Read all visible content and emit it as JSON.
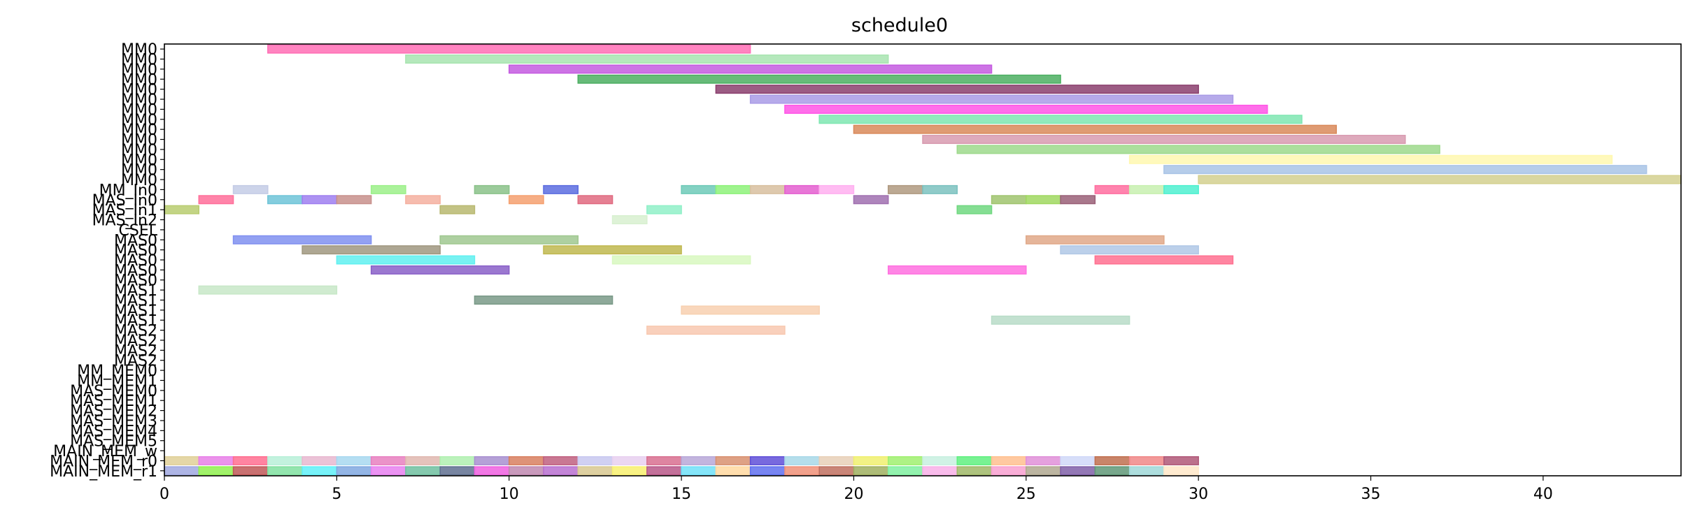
{
  "chart_data": {
    "type": "gantt",
    "title": "schedule0",
    "xlim": [
      0,
      44
    ],
    "x_ticks": [
      0,
      5,
      10,
      15,
      20,
      25,
      30,
      35,
      40
    ],
    "grid": false,
    "rows": [
      "MM0",
      "MM0",
      "MM0",
      "MM0",
      "MM0",
      "MM0",
      "MM0",
      "MM0",
      "MM0",
      "MM0",
      "MM0",
      "MM0",
      "MM0",
      "MM0",
      "MM_In0",
      "MAS_In0",
      "MAS_In1",
      "MAS_In2",
      "CSEL",
      "MAS0",
      "MAS0",
      "MAS0",
      "MAS0",
      "MAS0",
      "MAS1",
      "MAS1",
      "MAS1",
      "MAS1",
      "MAS2",
      "MAS2",
      "MAS2",
      "MAS2",
      "MM_MEM0",
      "MM_MEM1",
      "MAS_MEM0",
      "MAS_MEM1",
      "MAS_MEM2",
      "MAS_MEM3",
      "MAS_MEM4",
      "MAS_MEM5",
      "MAIN_MEM_w",
      "MAIN_MEM_r0",
      "MAIN_MEM_r1"
    ],
    "bars": [
      {
        "row": 0,
        "start": 3,
        "end": 17,
        "color": "#ff6fb5"
      },
      {
        "row": 1,
        "start": 7,
        "end": 21,
        "color": "#a8e4b0"
      },
      {
        "row": 2,
        "start": 10,
        "end": 24,
        "color": "#c45ae0"
      },
      {
        "row": 3,
        "start": 12,
        "end": 26,
        "color": "#4caf62"
      },
      {
        "row": 4,
        "start": 16,
        "end": 30,
        "color": "#8b3f6e"
      },
      {
        "row": 5,
        "start": 17,
        "end": 31,
        "color": "#a99be6"
      },
      {
        "row": 6,
        "start": 18,
        "end": 32,
        "color": "#ff55e6"
      },
      {
        "row": 7,
        "start": 19,
        "end": 33,
        "color": "#7fe6b2"
      },
      {
        "row": 8,
        "start": 20,
        "end": 34,
        "color": "#d9895a"
      },
      {
        "row": 9,
        "start": 22,
        "end": 36,
        "color": "#d89bb0"
      },
      {
        "row": 10,
        "start": 23,
        "end": 37,
        "color": "#9ed98c"
      },
      {
        "row": 11,
        "start": 28,
        "end": 42,
        "color": "#fff8b0"
      },
      {
        "row": 12,
        "start": 29,
        "end": 43,
        "color": "#a9c4e6"
      },
      {
        "row": 13,
        "start": 30,
        "end": 44,
        "color": "#d4d08f"
      },
      {
        "row": 14,
        "start": 2,
        "end": 3,
        "color": "#c4cce6"
      },
      {
        "row": 14,
        "start": 6,
        "end": 7,
        "color": "#9cf08a"
      },
      {
        "row": 14,
        "start": 9,
        "end": 10,
        "color": "#8bc28a"
      },
      {
        "row": 14,
        "start": 11,
        "end": 12,
        "color": "#5c6de0"
      },
      {
        "row": 14,
        "start": 15,
        "end": 16,
        "color": "#6fcab8"
      },
      {
        "row": 14,
        "start": 16,
        "end": 17,
        "color": "#8ef27a"
      },
      {
        "row": 14,
        "start": 17,
        "end": 18,
        "color": "#d8c0a0"
      },
      {
        "row": 14,
        "start": 18,
        "end": 19,
        "color": "#e45fd0"
      },
      {
        "row": 14,
        "start": 19,
        "end": 20,
        "color": "#ffb0f0"
      },
      {
        "row": 14,
        "start": 21,
        "end": 22,
        "color": "#b09a80"
      },
      {
        "row": 14,
        "start": 22,
        "end": 23,
        "color": "#7cc2c0"
      },
      {
        "row": 14,
        "start": 27,
        "end": 28,
        "color": "#ff6fa0"
      },
      {
        "row": 14,
        "start": 28,
        "end": 29,
        "color": "#c8f0b0"
      },
      {
        "row": 14,
        "start": 29,
        "end": 30,
        "color": "#4ff0d0"
      },
      {
        "row": 15,
        "start": 1,
        "end": 2,
        "color": "#ff6f9a"
      },
      {
        "row": 15,
        "start": 3,
        "end": 4,
        "color": "#6fc4d8"
      },
      {
        "row": 15,
        "start": 4,
        "end": 5,
        "color": "#9f7ff0"
      },
      {
        "row": 15,
        "start": 5,
        "end": 6,
        "color": "#c8908c"
      },
      {
        "row": 15,
        "start": 7,
        "end": 8,
        "color": "#f5b0a0"
      },
      {
        "row": 15,
        "start": 10,
        "end": 11,
        "color": "#f5a070"
      },
      {
        "row": 15,
        "start": 12,
        "end": 13,
        "color": "#e06a80"
      },
      {
        "row": 15,
        "start": 20,
        "end": 21,
        "color": "#a070b0"
      },
      {
        "row": 15,
        "start": 24,
        "end": 25,
        "color": "#a0c46f"
      },
      {
        "row": 15,
        "start": 25,
        "end": 26,
        "color": "#a0d860"
      },
      {
        "row": 15,
        "start": 26,
        "end": 27,
        "color": "#9a6078"
      },
      {
        "row": 16,
        "start": 0,
        "end": 1,
        "color": "#b8cc70"
      },
      {
        "row": 16,
        "start": 8,
        "end": 9,
        "color": "#b8b870"
      },
      {
        "row": 16,
        "start": 14,
        "end": 15,
        "color": "#90f0c8"
      },
      {
        "row": 16,
        "start": 23,
        "end": 24,
        "color": "#70d880"
      },
      {
        "row": 17,
        "start": 13,
        "end": 14,
        "color": "#d8f0d0"
      },
      {
        "row": 19,
        "start": 2,
        "end": 6,
        "color": "#8090f0"
      },
      {
        "row": 19,
        "start": 8,
        "end": 12,
        "color": "#a0c890"
      },
      {
        "row": 19,
        "start": 25,
        "end": 29,
        "color": "#e0a888"
      },
      {
        "row": 20,
        "start": 4,
        "end": 8,
        "color": "#a09880"
      },
      {
        "row": 20,
        "start": 11,
        "end": 15,
        "color": "#c0b850"
      },
      {
        "row": 20,
        "start": 26,
        "end": 30,
        "color": "#b0c8e6"
      },
      {
        "row": 21,
        "start": 5,
        "end": 9,
        "color": "#60f0f0"
      },
      {
        "row": 21,
        "start": 13,
        "end": 17,
        "color": "#d8f8c0"
      },
      {
        "row": 21,
        "start": 27,
        "end": 31,
        "color": "#ff7090"
      },
      {
        "row": 22,
        "start": 6,
        "end": 10,
        "color": "#8a60c8"
      },
      {
        "row": 22,
        "start": 21,
        "end": 25,
        "color": "#ff70e0"
      },
      {
        "row": 24,
        "start": 1,
        "end": 5,
        "color": "#c8e8c8"
      },
      {
        "row": 25,
        "start": 9,
        "end": 13,
        "color": "#7a9a88"
      },
      {
        "row": 26,
        "start": 15,
        "end": 19,
        "color": "#f8d0b0"
      },
      {
        "row": 27,
        "start": 24,
        "end": 28,
        "color": "#b8dcc8"
      },
      {
        "row": 28,
        "start": 14,
        "end": 18,
        "color": "#f8c8b0"
      },
      {
        "row": 41,
        "start": 0,
        "end": 1,
        "color": "#e0d098"
      },
      {
        "row": 41,
        "start": 1,
        "end": 2,
        "color": "#e880e8"
      },
      {
        "row": 41,
        "start": 2,
        "end": 3,
        "color": "#ff6f90"
      },
      {
        "row": 41,
        "start": 3,
        "end": 4,
        "color": "#b8f0d8"
      },
      {
        "row": 41,
        "start": 4,
        "end": 5,
        "color": "#e8b8d0"
      },
      {
        "row": 41,
        "start": 5,
        "end": 6,
        "color": "#a8d8f0"
      },
      {
        "row": 41,
        "start": 6,
        "end": 7,
        "color": "#e880c0"
      },
      {
        "row": 41,
        "start": 7,
        "end": 8,
        "color": "#e0b8b0"
      },
      {
        "row": 41,
        "start": 8,
        "end": 9,
        "color": "#b0f0b0"
      },
      {
        "row": 41,
        "start": 9,
        "end": 10,
        "color": "#a890d0"
      },
      {
        "row": 41,
        "start": 10,
        "end": 11,
        "color": "#d88060"
      },
      {
        "row": 41,
        "start": 11,
        "end": 12,
        "color": "#c06080"
      },
      {
        "row": 41,
        "start": 12,
        "end": 13,
        "color": "#c8c8f0"
      },
      {
        "row": 41,
        "start": 13,
        "end": 14,
        "color": "#e8d0f0"
      },
      {
        "row": 41,
        "start": 14,
        "end": 15,
        "color": "#d87090"
      },
      {
        "row": 41,
        "start": 15,
        "end": 16,
        "color": "#b8a8d8"
      },
      {
        "row": 41,
        "start": 16,
        "end": 17,
        "color": "#d89070"
      },
      {
        "row": 41,
        "start": 17,
        "end": 18,
        "color": "#6050d8"
      },
      {
        "row": 41,
        "start": 18,
        "end": 19,
        "color": "#a8d8e8"
      },
      {
        "row": 41,
        "start": 19,
        "end": 20,
        "color": "#e8d0b8"
      },
      {
        "row": 41,
        "start": 20,
        "end": 21,
        "color": "#f0f070"
      },
      {
        "row": 41,
        "start": 21,
        "end": 22,
        "color": "#a0f070"
      },
      {
        "row": 41,
        "start": 22,
        "end": 23,
        "color": "#c8f0e0"
      },
      {
        "row": 41,
        "start": 23,
        "end": 24,
        "color": "#60f080"
      },
      {
        "row": 41,
        "start": 24,
        "end": 25,
        "color": "#ffc090"
      },
      {
        "row": 41,
        "start": 25,
        "end": 26,
        "color": "#e090d8"
      },
      {
        "row": 41,
        "start": 26,
        "end": 27,
        "color": "#d0d8f8"
      },
      {
        "row": 41,
        "start": 27,
        "end": 28,
        "color": "#c07050"
      },
      {
        "row": 41,
        "start": 28,
        "end": 29,
        "color": "#f08888"
      },
      {
        "row": 41,
        "start": 29,
        "end": 30,
        "color": "#b05878"
      },
      {
        "row": 42,
        "start": 0,
        "end": 1,
        "color": "#a0a8e0"
      },
      {
        "row": 42,
        "start": 1,
        "end": 2,
        "color": "#90f050"
      },
      {
        "row": 42,
        "start": 2,
        "end": 3,
        "color": "#c05858"
      },
      {
        "row": 42,
        "start": 3,
        "end": 4,
        "color": "#80e0a0"
      },
      {
        "row": 42,
        "start": 4,
        "end": 5,
        "color": "#60f0f8"
      },
      {
        "row": 42,
        "start": 5,
        "end": 6,
        "color": "#80a8e0"
      },
      {
        "row": 42,
        "start": 6,
        "end": 7,
        "color": "#e880f0"
      },
      {
        "row": 42,
        "start": 7,
        "end": 8,
        "color": "#70c0a0"
      },
      {
        "row": 42,
        "start": 8,
        "end": 9,
        "color": "#607090"
      },
      {
        "row": 42,
        "start": 9,
        "end": 10,
        "color": "#f060e0"
      },
      {
        "row": 42,
        "start": 10,
        "end": 11,
        "color": "#c088b0"
      },
      {
        "row": 42,
        "start": 11,
        "end": 12,
        "color": "#b870d0"
      },
      {
        "row": 42,
        "start": 12,
        "end": 13,
        "color": "#d8c890"
      },
      {
        "row": 42,
        "start": 13,
        "end": 14,
        "color": "#f8f070"
      },
      {
        "row": 42,
        "start": 14,
        "end": 15,
        "color": "#b85888"
      },
      {
        "row": 42,
        "start": 15,
        "end": 16,
        "color": "#70e0f8"
      },
      {
        "row": 42,
        "start": 16,
        "end": 17,
        "color": "#ffd8a0"
      },
      {
        "row": 42,
        "start": 17,
        "end": 18,
        "color": "#6070f0"
      },
      {
        "row": 42,
        "start": 18,
        "end": 19,
        "color": "#f09078"
      },
      {
        "row": 42,
        "start": 19,
        "end": 20,
        "color": "#c07060"
      },
      {
        "row": 42,
        "start": 20,
        "end": 21,
        "color": "#a0b060"
      },
      {
        "row": 42,
        "start": 21,
        "end": 22,
        "color": "#80f0a0"
      },
      {
        "row": 42,
        "start": 22,
        "end": 23,
        "color": "#f8b0e8"
      },
      {
        "row": 42,
        "start": 23,
        "end": 24,
        "color": "#a0b868"
      },
      {
        "row": 42,
        "start": 24,
        "end": 25,
        "color": "#f8a0d0"
      },
      {
        "row": 42,
        "start": 25,
        "end": 26,
        "color": "#b0a890"
      },
      {
        "row": 42,
        "start": 26,
        "end": 27,
        "color": "#8060a8"
      },
      {
        "row": 42,
        "start": 27,
        "end": 28,
        "color": "#609878"
      },
      {
        "row": 42,
        "start": 28,
        "end": 29,
        "color": "#a0d8d8"
      },
      {
        "row": 42,
        "start": 29,
        "end": 30,
        "color": "#ffe8c8"
      }
    ]
  }
}
